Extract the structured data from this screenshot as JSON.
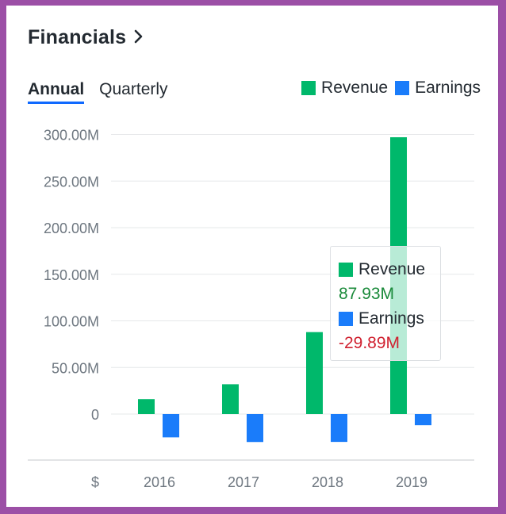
{
  "header": {
    "title": "Financials"
  },
  "tabs": [
    {
      "label": "Annual",
      "active": true
    },
    {
      "label": "Quarterly",
      "active": false
    }
  ],
  "legend": [
    {
      "label": "Revenue",
      "color": "#00b86b"
    },
    {
      "label": "Earnings",
      "color": "#1a7cfa"
    }
  ],
  "tooltip": {
    "revenue_label": "Revenue",
    "revenue_value": "87.93M",
    "revenue_value_color": "#1a8a3a",
    "earnings_label": "Earnings",
    "earnings_value": "-29.89M",
    "earnings_value_color": "#d0202f"
  },
  "chart_data": {
    "type": "bar",
    "categories": [
      "2016",
      "2017",
      "2018",
      "2019"
    ],
    "series": [
      {
        "name": "Revenue",
        "color": "#00b86b",
        "values": [
          16,
          32,
          87.93,
          297
        ]
      },
      {
        "name": "Earnings",
        "color": "#1a7cfa",
        "values": [
          -25,
          -30,
          -29.89,
          -12
        ]
      }
    ],
    "ylim": [
      -50,
      300
    ],
    "yticks": [
      {
        "value": 300,
        "label": "300.00M"
      },
      {
        "value": 250,
        "label": "250.00M"
      },
      {
        "value": 200,
        "label": "200.00M"
      },
      {
        "value": 150,
        "label": "150.00M"
      },
      {
        "value": 100,
        "label": "100.00M"
      },
      {
        "value": 50,
        "label": "50.00M"
      },
      {
        "value": 0,
        "label": "0"
      }
    ],
    "currency_label": "$",
    "grid": true,
    "legend_position": "top-right"
  }
}
